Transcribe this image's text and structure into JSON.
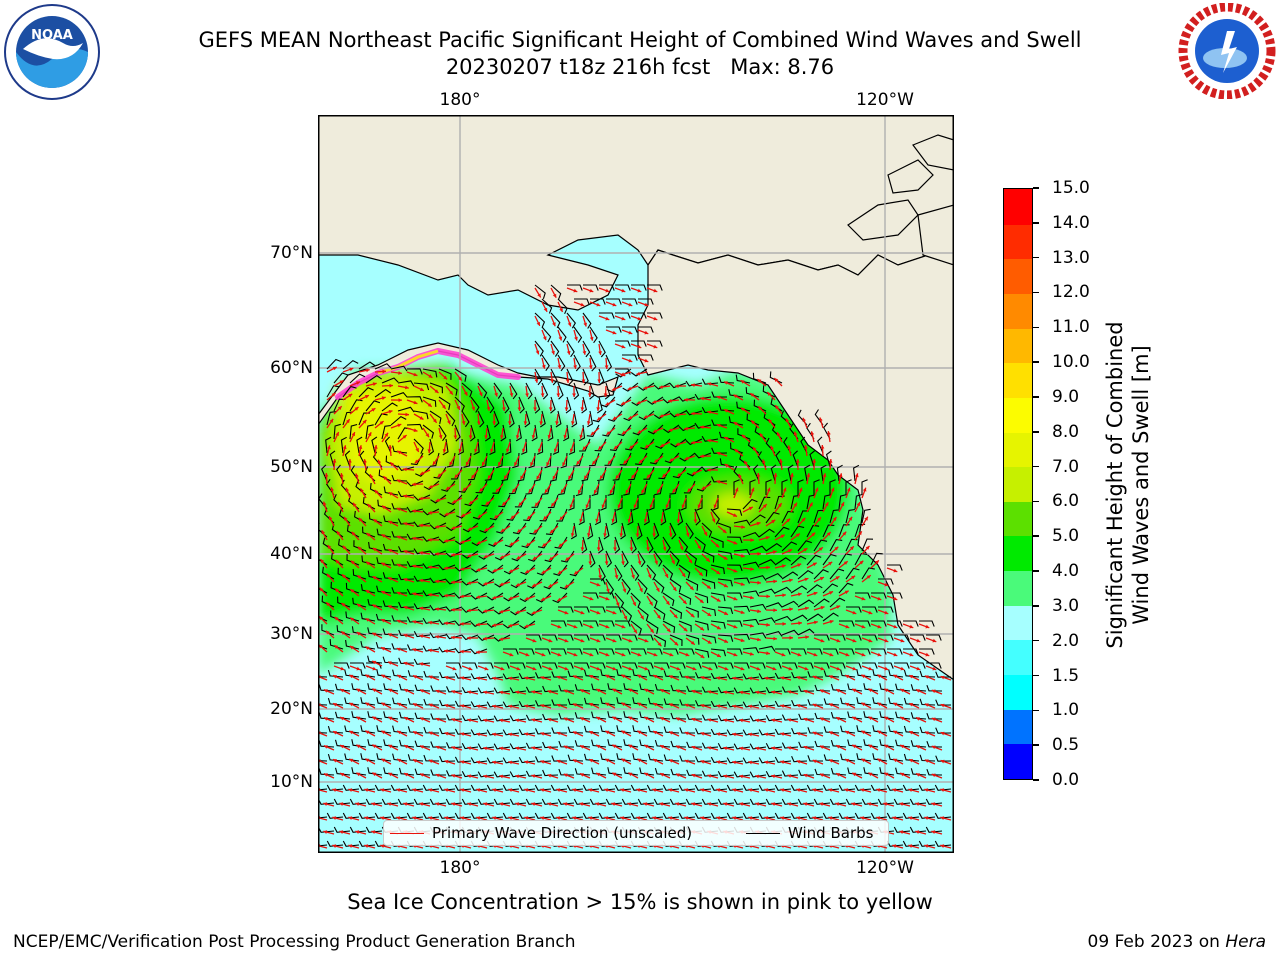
{
  "title": {
    "line1": "GEFS MEAN Northeast Pacific Significant Height of Combined Wind Waves and Swell",
    "line2": "20230207 t18z 216h fcst   Max: 8.76"
  },
  "logos": {
    "left": "noaa-logo",
    "right": "nws-logo"
  },
  "map": {
    "lon_ticks_top": [
      "180°",
      "120°W"
    ],
    "lon_ticks_bottom": [
      "180°",
      "120°W"
    ],
    "lat_ticks": [
      "70°N",
      "60°N",
      "50°N",
      "40°N",
      "30°N",
      "20°N",
      "10°N"
    ],
    "colors": {
      "land": "#efecdc",
      "coast": "#000000",
      "grid": "#b0b0b0",
      "wind_barbs": "#000000",
      "wave_direction": "#e8120c",
      "ice": "#ff44d0"
    },
    "legend": {
      "wave_direction": "Primary Wave Direction (unscaled)",
      "wind_barbs": "Wind Barbs"
    }
  },
  "colorbar": {
    "label_line1": "Significant Height of Combined",
    "label_line2": "Wind Waves and Swell [m]",
    "ticks": [
      "0.0",
      "0.5",
      "1.0",
      "1.5",
      "2.0",
      "3.0",
      "4.0",
      "5.0",
      "6.0",
      "7.0",
      "8.0",
      "9.0",
      "10.0",
      "11.0",
      "12.0",
      "13.0",
      "14.0",
      "15.0"
    ],
    "colors": [
      "#0000ff",
      "#0073ff",
      "#00ffff",
      "#44ffff",
      "#a6ffff",
      "#4afa7a",
      "#00ea00",
      "#5ce000",
      "#c6f000",
      "#e6f400",
      "#fcfc00",
      "#ffe000",
      "#ffb800",
      "#ff8a00",
      "#ff5c00",
      "#ff2c00",
      "#ff0000"
    ]
  },
  "chart_data": {
    "type": "heatmap",
    "title": "GEFS MEAN Northeast Pacific Significant Height of Combined Wind Waves and Swell",
    "max": 8.76,
    "units": "m",
    "scale_range": [
      0,
      15
    ]
  },
  "caption": "Sea Ice Concentration > 15% is shown in pink to yellow",
  "footer": {
    "left": "NCEP/EMC/Verification Post Processing Product Generation Branch",
    "right_date": "09 Feb 2023 on",
    "right_machine": "Hera"
  }
}
